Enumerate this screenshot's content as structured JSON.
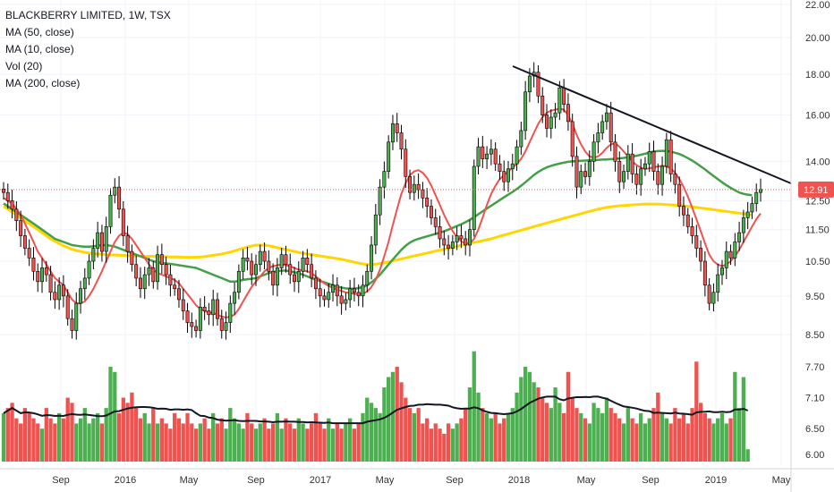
{
  "legend": {
    "title": "BLACKBERRY LIMITED, 1W, TSX",
    "ma50": "MA (50, close)",
    "ma10": "MA (10, close)",
    "vol": "Vol (20)",
    "ma200": "MA (200, close)"
  },
  "colors": {
    "up": "#4caf50",
    "down": "#ef5350",
    "ma10": "#ef5350",
    "ma50": "#43a047",
    "ma200": "#ffd600",
    "vol_ma": "#131722",
    "trendline": "#131722",
    "last_price": "#ef5350"
  },
  "chart_data": {
    "type": "candlestick",
    "title": "BLACKBERRY LIMITED, 1W, TSX",
    "price_axis": {
      "ticks": [
        "22.00",
        "20.00",
        "18.00",
        "16.00",
        "14.00",
        "12.50",
        "11.50",
        "10.50",
        "9.50",
        "8.50"
      ],
      "scale": "log"
    },
    "volume_axis": {
      "ticks": [
        "7.70",
        "7.10",
        "6.50",
        "6.00"
      ]
    },
    "x_ticks": [
      "Sep",
      "2016",
      "May",
      "Sep",
      "2017",
      "May",
      "Sep",
      "2018",
      "May",
      "Sep",
      "2019",
      "May"
    ],
    "last_price_label": "12.91",
    "closes": [
      12.8,
      12.5,
      12.2,
      11.8,
      11.3,
      10.9,
      10.6,
      10.2,
      9.9,
      10.3,
      10.1,
      9.6,
      9.4,
      9.8,
      9.5,
      8.9,
      8.6,
      9.3,
      9.7,
      10.0,
      10.5,
      10.9,
      11.4,
      10.8,
      11.6,
      12.7,
      13.0,
      12.2,
      11.3,
      10.8,
      10.4,
      10.0,
      9.7,
      10.1,
      10.3,
      9.9,
      10.7,
      10.4,
      10.1,
      9.8,
      9.7,
      9.4,
      9.1,
      8.8,
      8.7,
      8.6,
      9.2,
      9.1,
      9.0,
      9.4,
      8.9,
      8.6,
      8.8,
      9.3,
      9.6,
      10.2,
      10.6,
      10.5,
      10.1,
      10.4,
      10.8,
      10.5,
      10.2,
      9.8,
      10.3,
      10.7,
      10.4,
      10.1,
      9.9,
      10.2,
      10.6,
      10.4,
      10.0,
      9.7,
      9.5,
      9.4,
      9.6,
      9.8,
      9.5,
      9.3,
      9.4,
      9.7,
      9.6,
      9.5,
      9.8,
      10.2,
      11.0,
      12.0,
      13.0,
      13.6,
      14.8,
      15.6,
      15.2,
      14.5,
      13.4,
      12.8,
      13.1,
      12.9,
      12.6,
      12.3,
      11.9,
      11.6,
      11.2,
      11.0,
      10.9,
      11.1,
      11.3,
      11.2,
      11.0,
      11.5,
      13.8,
      14.6,
      14.1,
      14.3,
      14.5,
      13.9,
      13.6,
      13.2,
      13.7,
      13.9,
      14.6,
      15.3,
      17.1,
      17.9,
      18.1,
      16.9,
      16.0,
      15.4,
      15.9,
      16.1,
      17.3,
      16.5,
      15.7,
      14.2,
      13.0,
      13.6,
      13.4,
      14.0,
      14.8,
      15.2,
      15.7,
      16.1,
      14.8,
      14.0,
      13.2,
      13.6,
      14.3,
      13.5,
      13.1,
      13.7,
      13.9,
      14.4,
      13.6,
      13.1,
      13.8,
      14.9,
      13.5,
      13.1,
      12.3,
      12.0,
      11.6,
      11.3,
      10.9,
      10.5,
      9.8,
      9.3,
      9.6,
      10.1,
      10.3,
      10.8,
      10.6,
      11.1,
      11.4,
      11.9,
      12.1,
      12.4,
      12.8,
      12.91
    ],
    "ma50": [
      12.4,
      12.3,
      12.2,
      12.1,
      12.0,
      11.9,
      11.8,
      11.7,
      11.6,
      11.5,
      11.4,
      11.3,
      11.2,
      11.15,
      11.1,
      11.05,
      11.0,
      10.98,
      10.96,
      10.95,
      10.95,
      10.96,
      10.98,
      11.0,
      11.0,
      10.98,
      10.95,
      10.9,
      10.85,
      10.8,
      10.75,
      10.7,
      10.65,
      10.6,
      10.55,
      10.5,
      10.47,
      10.45,
      10.43,
      10.42,
      10.4,
      10.38,
      10.36,
      10.34,
      10.32,
      10.3,
      10.25,
      10.2,
      10.15,
      10.1,
      10.05,
      10.0,
      9.95,
      9.9,
      9.9,
      9.92,
      9.95,
      9.97,
      9.98,
      10.0,
      10.05,
      10.1,
      10.15,
      10.18,
      10.2,
      10.22,
      10.22,
      10.2,
      10.17,
      10.14,
      10.1,
      10.05,
      10.0,
      9.96,
      9.92,
      9.88,
      9.84,
      9.8,
      9.76,
      9.73,
      9.71,
      9.7,
      9.7,
      9.72,
      9.75,
      9.8,
      9.88,
      9.98,
      10.1,
      10.25,
      10.4,
      10.55,
      10.7,
      10.85,
      10.98,
      11.08,
      11.15,
      11.2,
      11.24,
      11.28,
      11.32,
      11.36,
      11.4,
      11.45,
      11.5,
      11.56,
      11.62,
      11.68,
      11.75,
      11.83,
      11.92,
      12.02,
      12.12,
      12.22,
      12.32,
      12.42,
      12.52,
      12.62,
      12.72,
      12.82,
      12.93,
      13.05,
      13.18,
      13.32,
      13.46,
      13.58,
      13.68,
      13.76,
      13.82,
      13.87,
      13.91,
      13.95,
      13.98,
      14.0,
      14.01,
      14.02,
      14.03,
      14.04,
      14.05,
      14.06,
      14.07,
      14.08,
      14.09,
      14.1,
      14.12,
      14.14,
      14.17,
      14.2,
      14.23,
      14.27,
      14.31,
      14.36,
      14.4,
      14.42,
      14.43,
      14.42,
      14.4,
      14.35,
      14.3,
      14.22,
      14.13,
      14.03,
      13.92,
      13.8,
      13.68,
      13.55,
      13.42,
      13.3,
      13.18,
      13.07,
      12.97,
      12.88,
      12.8,
      12.75,
      12.72,
      12.7
    ],
    "ma10": [
      12.6,
      12.5,
      12.4,
      12.2,
      12.0,
      11.7,
      11.4,
      11.1,
      10.8,
      10.6,
      10.4,
      10.2,
      10.0,
      9.9,
      9.8,
      9.6,
      9.4,
      9.3,
      9.3,
      9.35,
      9.5,
      9.7,
      9.95,
      10.2,
      10.5,
      10.8,
      11.1,
      11.3,
      11.4,
      11.35,
      11.2,
      11.0,
      10.8,
      10.6,
      10.4,
      10.25,
      10.15,
      10.1,
      10.05,
      10.0,
      9.95,
      9.85,
      9.7,
      9.55,
      9.4,
      9.25,
      9.15,
      9.1,
      9.05,
      9.05,
      9.0,
      8.95,
      8.93,
      8.95,
      9.0,
      9.15,
      9.35,
      9.55,
      9.75,
      9.9,
      10.05,
      10.2,
      10.3,
      10.35,
      10.38,
      10.4,
      10.38,
      10.35,
      10.3,
      10.25,
      10.22,
      10.2,
      10.15,
      10.05,
      9.95,
      9.85,
      9.78,
      9.72,
      9.68,
      9.64,
      9.6,
      9.58,
      9.56,
      9.55,
      9.56,
      9.62,
      9.75,
      9.95,
      10.25,
      10.65,
      11.1,
      11.65,
      12.2,
      12.75,
      13.15,
      13.45,
      13.6,
      13.65,
      13.55,
      13.35,
      13.05,
      12.7,
      12.35,
      12.0,
      11.7,
      11.45,
      11.25,
      11.12,
      11.05,
      11.05,
      11.2,
      11.5,
      11.9,
      12.35,
      12.75,
      13.05,
      13.3,
      13.45,
      13.6,
      13.75,
      13.9,
      14.1,
      14.4,
      14.8,
      15.2,
      15.6,
      15.9,
      16.1,
      16.2,
      16.25,
      16.3,
      16.25,
      16.0,
      15.6,
      15.1,
      14.7,
      14.4,
      14.2,
      14.15,
      14.2,
      14.35,
      14.55,
      14.7,
      14.75,
      14.6,
      14.4,
      14.2,
      14.0,
      13.85,
      13.75,
      13.7,
      13.72,
      13.76,
      13.8,
      13.82,
      13.8,
      13.72,
      13.55,
      13.3,
      13.0,
      12.65,
      12.25,
      11.85,
      11.45,
      11.05,
      10.7,
      10.5,
      10.4,
      10.35,
      10.4,
      10.5,
      10.65,
      10.85,
      11.1,
      11.35,
      11.6,
      11.85,
      12.05
    ],
    "ma200": [
      12.3,
      12.2,
      12.1,
      12.0,
      11.9,
      11.8,
      11.7,
      11.6,
      11.5,
      11.4,
      11.3,
      11.2,
      11.12,
      11.05,
      10.98,
      10.92,
      10.87,
      10.83,
      10.8,
      10.77,
      10.75,
      10.73,
      10.72,
      10.71,
      10.7,
      10.69,
      10.69,
      10.68,
      10.68,
      10.67,
      10.67,
      10.66,
      10.66,
      10.65,
      10.65,
      10.65,
      10.64,
      10.64,
      10.64,
      10.63,
      10.63,
      10.63,
      10.62,
      10.62,
      10.62,
      10.62,
      10.63,
      10.64,
      10.66,
      10.68,
      10.7,
      10.72,
      10.75,
      10.78,
      10.82,
      10.86,
      10.9,
      10.94,
      10.97,
      11.0,
      11.0,
      11.0,
      10.98,
      10.95,
      10.92,
      10.89,
      10.86,
      10.83,
      10.8,
      10.77,
      10.74,
      10.72,
      10.7,
      10.68,
      10.66,
      10.64,
      10.62,
      10.6,
      10.58,
      10.56,
      10.53,
      10.5,
      10.47,
      10.44,
      10.42,
      10.4,
      10.4,
      10.41,
      10.43,
      10.45,
      10.48,
      10.51,
      10.54,
      10.57,
      10.6,
      10.63,
      10.66,
      10.69,
      10.72,
      10.75,
      10.78,
      10.81,
      10.84,
      10.87,
      10.9,
      10.93,
      10.96,
      10.99,
      11.02,
      11.05,
      11.08,
      11.11,
      11.14,
      11.17,
      11.2,
      11.24,
      11.28,
      11.32,
      11.36,
      11.4,
      11.44,
      11.48,
      11.52,
      11.56,
      11.6,
      11.64,
      11.68,
      11.72,
      11.76,
      11.8,
      11.84,
      11.88,
      11.92,
      11.96,
      12.0,
      12.04,
      12.08,
      12.12,
      12.16,
      12.2,
      12.23,
      12.26,
      12.28,
      12.3,
      12.32,
      12.33,
      12.34,
      12.35,
      12.36,
      12.37,
      12.38,
      12.38,
      12.38,
      12.38,
      12.37,
      12.36,
      12.35,
      12.34,
      12.33,
      12.32,
      12.3,
      12.28,
      12.26,
      12.24,
      12.22,
      12.2,
      12.18,
      12.16,
      12.14,
      12.12,
      12.1,
      12.08,
      12.06,
      12.04,
      12.02,
      12.0
    ],
    "volume": [
      6.8,
      6.9,
      7.0,
      6.7,
      6.6,
      6.9,
      6.8,
      6.7,
      6.6,
      6.5,
      6.9,
      6.7,
      6.6,
      6.8,
      6.7,
      7.1,
      7.0,
      6.6,
      6.7,
      6.9,
      6.6,
      6.7,
      6.8,
      6.6,
      6.9,
      7.7,
      7.6,
      6.8,
      7.1,
      7.0,
      7.2,
      6.9,
      6.7,
      6.8,
      6.6,
      6.9,
      6.6,
      6.7,
      6.6,
      6.5,
      6.8,
      6.7,
      6.6,
      6.8,
      6.6,
      6.5,
      6.6,
      6.7,
      6.5,
      6.8,
      6.6,
      6.7,
      6.5,
      6.9,
      6.7,
      6.6,
      6.5,
      6.8,
      6.6,
      6.5,
      6.6,
      6.7,
      6.5,
      6.6,
      6.8,
      6.5,
      6.7,
      6.6,
      6.5,
      6.7,
      6.6,
      6.5,
      6.6,
      6.8,
      6.6,
      6.5,
      6.7,
      6.5,
      6.6,
      6.5,
      6.6,
      6.7,
      6.5,
      6.6,
      6.8,
      7.1,
      7.0,
      6.9,
      6.8,
      7.3,
      7.5,
      7.6,
      7.7,
      7.4,
      7.1,
      6.9,
      6.8,
      6.9,
      6.6,
      6.7,
      6.5,
      6.6,
      6.5,
      6.4,
      6.6,
      6.5,
      6.6,
      6.7,
      6.9,
      7.3,
      8.0,
      7.2,
      6.9,
      6.8,
      6.7,
      6.8,
      6.6,
      6.7,
      6.8,
      6.9,
      7.2,
      7.5,
      7.7,
      7.6,
      7.4,
      7.3,
      7.1,
      7.0,
      6.9,
      7.3,
      7.0,
      6.8,
      7.6,
      7.1,
      6.9,
      6.8,
      6.7,
      6.6,
      7.0,
      6.9,
      6.8,
      7.1,
      6.9,
      6.8,
      6.7,
      6.6,
      6.9,
      6.7,
      6.6,
      6.8,
      6.6,
      6.7,
      6.9,
      7.2,
      6.8,
      6.7,
      6.6,
      6.9,
      6.7,
      6.8,
      6.6,
      6.9,
      7.8,
      7.0,
      6.8,
      6.7,
      6.6,
      6.7,
      6.8,
      6.6,
      6.7,
      7.6,
      6.9,
      7.5,
      6.1
    ]
  }
}
